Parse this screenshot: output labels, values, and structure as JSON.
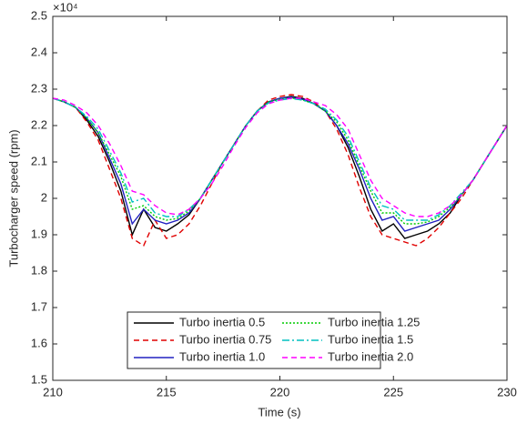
{
  "chart_data": {
    "type": "line",
    "xlabel": "Time (s)",
    "ylabel": "Turbocharger speed (rpm)",
    "y_multiplier": "×10⁴",
    "x": [
      210,
      210.5,
      211,
      211.5,
      212,
      212.5,
      213,
      213.5,
      214,
      214.5,
      215,
      215.5,
      216,
      216.5,
      217,
      217.5,
      218,
      218.5,
      219,
      219.5,
      220,
      220.5,
      221,
      221.5,
      222,
      222.5,
      223,
      223.5,
      224,
      224.5,
      225,
      225.5,
      226,
      226.5,
      227,
      227.5,
      228,
      228.5,
      229,
      229.5,
      230
    ],
    "series": [
      {
        "name": "Turbo inertia 0.5",
        "color": "#000000",
        "line_style": "solid",
        "values": [
          2.275,
          2.265,
          2.25,
          2.215,
          2.17,
          2.1,
          2.02,
          1.9,
          1.97,
          1.92,
          1.91,
          1.93,
          1.955,
          2.0,
          2.05,
          2.1,
          2.15,
          2.2,
          2.24,
          2.265,
          2.275,
          2.28,
          2.275,
          2.26,
          2.24,
          2.2,
          2.14,
          2.06,
          1.97,
          1.91,
          1.93,
          1.89,
          1.9,
          1.91,
          1.93,
          1.96,
          2.01,
          2.05,
          2.1,
          2.15,
          2.2
        ]
      },
      {
        "name": "Turbo inertia 0.75",
        "color": "#e00000",
        "line_style": "dashed",
        "values": [
          2.275,
          2.265,
          2.25,
          2.21,
          2.16,
          2.08,
          2.0,
          1.89,
          1.87,
          1.94,
          1.89,
          1.9,
          1.93,
          1.98,
          2.04,
          2.1,
          2.15,
          2.2,
          2.24,
          2.27,
          2.28,
          2.285,
          2.28,
          2.265,
          2.24,
          2.19,
          2.12,
          2.03,
          1.95,
          1.9,
          1.89,
          1.88,
          1.87,
          1.89,
          1.92,
          1.96,
          2.0,
          2.05,
          2.1,
          2.15,
          2.2
        ]
      },
      {
        "name": "Turbo inertia 1.0",
        "color": "#2020c0",
        "line_style": "solid",
        "values": [
          2.275,
          2.265,
          2.25,
          2.22,
          2.18,
          2.11,
          2.04,
          1.93,
          1.97,
          1.94,
          1.93,
          1.94,
          1.96,
          2.0,
          2.05,
          2.1,
          2.15,
          2.2,
          2.24,
          2.265,
          2.275,
          2.278,
          2.272,
          2.26,
          2.24,
          2.2,
          2.15,
          2.08,
          2.0,
          1.94,
          1.95,
          1.91,
          1.92,
          1.93,
          1.94,
          1.97,
          2.01,
          2.05,
          2.1,
          2.15,
          2.2
        ]
      },
      {
        "name": "Turbo inertia 1.25",
        "color": "#00cc00",
        "line_style": "dotted",
        "values": [
          2.275,
          2.265,
          2.25,
          2.22,
          2.18,
          2.12,
          2.06,
          1.97,
          1.98,
          1.95,
          1.94,
          1.945,
          1.965,
          2.0,
          2.05,
          2.1,
          2.15,
          2.2,
          2.24,
          2.265,
          2.272,
          2.276,
          2.27,
          2.26,
          2.24,
          2.21,
          2.16,
          2.09,
          2.02,
          1.96,
          1.96,
          1.93,
          1.93,
          1.935,
          1.95,
          1.975,
          2.01,
          2.05,
          2.1,
          2.15,
          2.2
        ]
      },
      {
        "name": "Turbo inertia 1.5",
        "color": "#00c0c0",
        "line_style": "dashdot",
        "values": [
          2.275,
          2.265,
          2.25,
          2.225,
          2.19,
          2.13,
          2.07,
          1.99,
          2.0,
          1.96,
          1.95,
          1.95,
          1.97,
          2.0,
          2.05,
          2.1,
          2.15,
          2.2,
          2.24,
          2.262,
          2.27,
          2.274,
          2.27,
          2.26,
          2.245,
          2.215,
          2.17,
          2.1,
          2.03,
          1.98,
          1.97,
          1.94,
          1.94,
          1.94,
          1.955,
          1.98,
          2.015,
          2.05,
          2.1,
          2.15,
          2.2
        ]
      },
      {
        "name": "Turbo inertia 2.0",
        "color": "#ff00ff",
        "line_style": "dashed",
        "values": [
          2.275,
          2.27,
          2.255,
          2.235,
          2.2,
          2.15,
          2.09,
          2.02,
          2.01,
          1.98,
          1.96,
          1.955,
          1.97,
          2.0,
          2.04,
          2.09,
          2.145,
          2.195,
          2.235,
          2.26,
          2.27,
          2.275,
          2.275,
          2.265,
          2.255,
          2.23,
          2.19,
          2.12,
          2.05,
          2.0,
          1.98,
          1.96,
          1.95,
          1.95,
          1.96,
          1.98,
          2.01,
          2.05,
          2.1,
          2.15,
          2.2
        ]
      }
    ],
    "xlim": [
      210,
      230
    ],
    "xticks": [
      210,
      215,
      220,
      225,
      230
    ],
    "ylim": [
      1.5,
      2.5
    ],
    "yticks": [
      1.5,
      1.6,
      1.7,
      1.8,
      1.9,
      2,
      2.1,
      2.2,
      2.3,
      2.4,
      2.5
    ],
    "grid": false,
    "legend": "lower center"
  }
}
